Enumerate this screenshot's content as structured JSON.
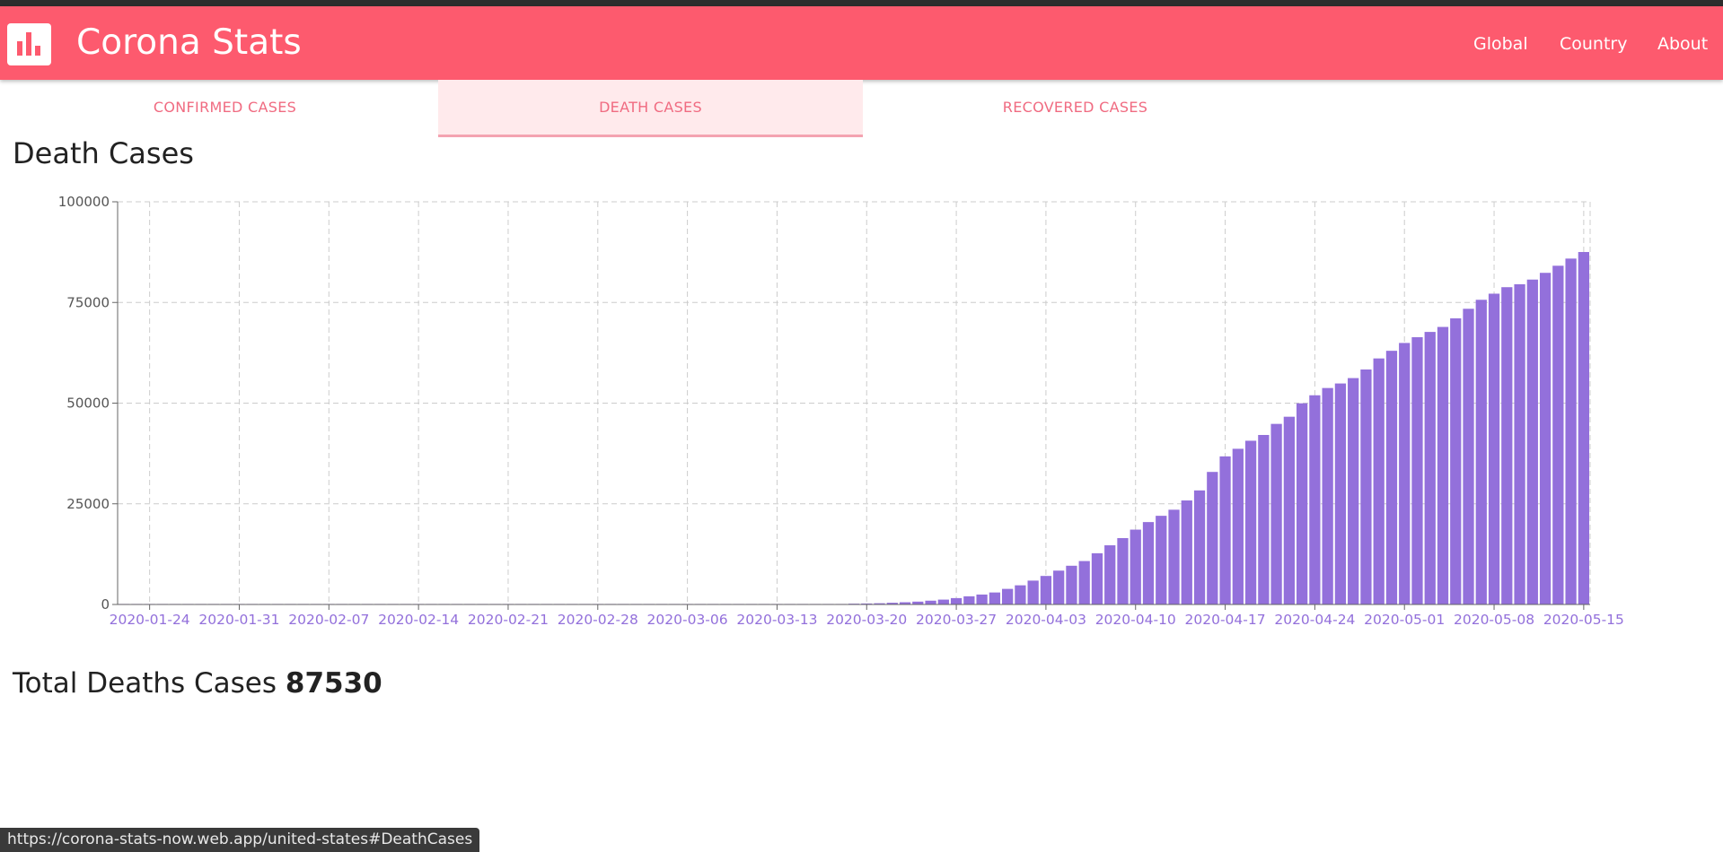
{
  "app": {
    "title": "Corona Stats",
    "logo_icon": "bar-chart-icon"
  },
  "nav": {
    "items": [
      {
        "label": "Global"
      },
      {
        "label": "Country"
      },
      {
        "label": "About"
      }
    ]
  },
  "tabs": [
    {
      "label": "CONFIRMED CASES",
      "active": false
    },
    {
      "label": "DEATH CASES",
      "active": true
    },
    {
      "label": "RECOVERED CASES",
      "active": false
    }
  ],
  "section": {
    "title": "Death Cases"
  },
  "total": {
    "label": "Total Deaths Cases",
    "value": "87530"
  },
  "status_url": "https://corona-stats-now.web.app/united-states#DeathCases",
  "colors": {
    "header_bg": "#fd5a6e",
    "tab_text": "#f06b81",
    "tab_active_bg": "#ffeaec",
    "tab_active_border": "#f4a3b1",
    "bar": "#9370db",
    "tick_label_x": "#9370db",
    "tick_label_y": "#555555",
    "grid": "#cccccc"
  },
  "chart_data": {
    "type": "bar",
    "title": "",
    "xlabel": "",
    "ylabel": "",
    "ylim": [
      0,
      100000
    ],
    "yticks": [
      0,
      25000,
      50000,
      75000,
      100000
    ],
    "xticks": [
      "2020-01-24",
      "2020-01-31",
      "2020-02-07",
      "2020-02-14",
      "2020-02-21",
      "2020-02-28",
      "2020-03-06",
      "2020-03-13",
      "2020-03-20",
      "2020-03-27",
      "2020-04-03",
      "2020-04-10",
      "2020-04-17",
      "2020-04-24",
      "2020-05-01",
      "2020-05-08",
      "2020-05-15"
    ],
    "grid": "dashed",
    "legend": "none",
    "categories": [
      "2020-01-22",
      "2020-01-23",
      "2020-01-24",
      "2020-01-25",
      "2020-01-26",
      "2020-01-27",
      "2020-01-28",
      "2020-01-29",
      "2020-01-30",
      "2020-01-31",
      "2020-02-01",
      "2020-02-02",
      "2020-02-03",
      "2020-02-04",
      "2020-02-05",
      "2020-02-06",
      "2020-02-07",
      "2020-02-08",
      "2020-02-09",
      "2020-02-10",
      "2020-02-11",
      "2020-02-12",
      "2020-02-13",
      "2020-02-14",
      "2020-02-15",
      "2020-02-16",
      "2020-02-17",
      "2020-02-18",
      "2020-02-19",
      "2020-02-20",
      "2020-02-21",
      "2020-02-22",
      "2020-02-23",
      "2020-02-24",
      "2020-02-25",
      "2020-02-26",
      "2020-02-27",
      "2020-02-28",
      "2020-02-29",
      "2020-03-01",
      "2020-03-02",
      "2020-03-03",
      "2020-03-04",
      "2020-03-05",
      "2020-03-06",
      "2020-03-07",
      "2020-03-08",
      "2020-03-09",
      "2020-03-10",
      "2020-03-11",
      "2020-03-12",
      "2020-03-13",
      "2020-03-14",
      "2020-03-15",
      "2020-03-16",
      "2020-03-17",
      "2020-03-18",
      "2020-03-19",
      "2020-03-20",
      "2020-03-21",
      "2020-03-22",
      "2020-03-23",
      "2020-03-24",
      "2020-03-25",
      "2020-03-26",
      "2020-03-27",
      "2020-03-28",
      "2020-03-29",
      "2020-03-30",
      "2020-03-31",
      "2020-04-01",
      "2020-04-02",
      "2020-04-03",
      "2020-04-04",
      "2020-04-05",
      "2020-04-06",
      "2020-04-07",
      "2020-04-08",
      "2020-04-09",
      "2020-04-10",
      "2020-04-11",
      "2020-04-12",
      "2020-04-13",
      "2020-04-14",
      "2020-04-15",
      "2020-04-16",
      "2020-04-17",
      "2020-04-18",
      "2020-04-19",
      "2020-04-20",
      "2020-04-21",
      "2020-04-22",
      "2020-04-23",
      "2020-04-24",
      "2020-04-25",
      "2020-04-26",
      "2020-04-27",
      "2020-04-28",
      "2020-04-29",
      "2020-04-30",
      "2020-05-01",
      "2020-05-02",
      "2020-05-03",
      "2020-05-04",
      "2020-05-05",
      "2020-05-06",
      "2020-05-07",
      "2020-05-08",
      "2020-05-09",
      "2020-05-10",
      "2020-05-11",
      "2020-05-12",
      "2020-05-13",
      "2020-05-14",
      "2020-05-15"
    ],
    "values": [
      0,
      0,
      0,
      0,
      0,
      0,
      0,
      0,
      0,
      0,
      0,
      0,
      0,
      0,
      0,
      0,
      0,
      0,
      0,
      0,
      0,
      0,
      0,
      0,
      0,
      0,
      0,
      0,
      0,
      0,
      0,
      0,
      0,
      0,
      0,
      0,
      0,
      0,
      1,
      1,
      6,
      7,
      11,
      12,
      14,
      17,
      21,
      22,
      28,
      36,
      40,
      47,
      54,
      63,
      85,
      108,
      118,
      200,
      244,
      307,
      427,
      552,
      706,
      942,
      1209,
      1581,
      2026,
      2467,
      2978,
      3873,
      4757,
      5926,
      7087,
      8407,
      9619,
      10783,
      12722,
      14695,
      16478,
      18586,
      20463,
      22020,
      23529,
      25831,
      28325,
      32916,
      36773,
      38664,
      40661,
      42094,
      44845,
      46622,
      49954,
      51949,
      53755,
      54881,
      56219,
      58355,
      61099,
      62996,
      64943,
      66369,
      67682,
      68922,
      71064,
      73431,
      75662,
      77180,
      78795,
      79526,
      80682,
      82356,
      84119,
      85898,
      87530
    ]
  }
}
